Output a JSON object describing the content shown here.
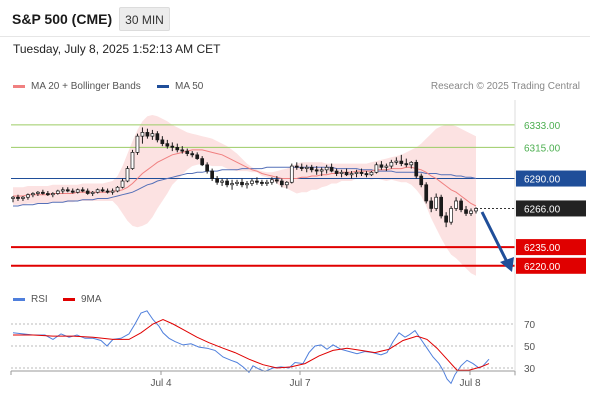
{
  "header": {
    "title": "S&P 500 (CME)",
    "timeframe": "30 MIN",
    "timestamp": "Tuesday, July 8, 2025 1:52:13 AM CET"
  },
  "legend": {
    "ma20": "MA 20 + Bollinger Bands",
    "ma50": "MA 50",
    "credit": "Research © 2025 Trading Central",
    "rsi": "RSI",
    "rsi_ma": "9MA"
  },
  "colors": {
    "ma20": "#f08080",
    "band_fill": "#fbd5d5",
    "ma50": "#5570b8",
    "candle": "#1a1a1a",
    "resistance": "#9ccc65",
    "pivot": "#1f4e99",
    "support": "#e00000",
    "rsi": "#4f7fdc",
    "rsi_ma": "#e00000",
    "arrow": "#1f4e99"
  },
  "levels": [
    {
      "value": 6333.0,
      "label": "6333.00",
      "type": "resistance"
    },
    {
      "value": 6315.0,
      "label": "6315.00",
      "type": "resistance"
    },
    {
      "value": 6290.0,
      "label": "6290.00",
      "type": "pivot"
    },
    {
      "value": 6266.0,
      "label": "6266.00",
      "type": "current"
    },
    {
      "value": 6235.0,
      "label": "6235.00",
      "type": "support"
    },
    {
      "value": 6220.0,
      "label": "6220.00",
      "type": "support"
    }
  ],
  "x_labels": [
    "Jul 4",
    "Jul 7",
    "Jul 8"
  ],
  "rsi_ticks": [
    "70",
    "50",
    "30"
  ],
  "chart_data": {
    "type": "candlestick",
    "ylim": [
      6207,
      6353
    ],
    "candles": [
      [
        6274,
        6276,
        6271,
        6275
      ],
      [
        6275,
        6277,
        6272,
        6274
      ],
      [
        6274,
        6276,
        6272,
        6275
      ],
      [
        6275,
        6278,
        6273,
        6277
      ],
      [
        6277,
        6279,
        6275,
        6278
      ],
      [
        6278,
        6280,
        6276,
        6279
      ],
      [
        6279,
        6281,
        6277,
        6278
      ],
      [
        6278,
        6280,
        6276,
        6277
      ],
      [
        6277,
        6279,
        6275,
        6278
      ],
      [
        6278,
        6281,
        6277,
        6280
      ],
      [
        6280,
        6283,
        6278,
        6281
      ],
      [
        6281,
        6283,
        6279,
        6280
      ],
      [
        6280,
        6282,
        6278,
        6279
      ],
      [
        6279,
        6282,
        6278,
        6281
      ],
      [
        6281,
        6283,
        6279,
        6280
      ],
      [
        6280,
        6282,
        6277,
        6278
      ],
      [
        6278,
        6280,
        6276,
        6279
      ],
      [
        6279,
        6282,
        6278,
        6281
      ],
      [
        6281,
        6283,
        6279,
        6280
      ],
      [
        6280,
        6282,
        6278,
        6279
      ],
      [
        6279,
        6282,
        6277,
        6280
      ],
      [
        6280,
        6284,
        6279,
        6283
      ],
      [
        6283,
        6290,
        6282,
        6288
      ],
      [
        6288,
        6300,
        6287,
        6298
      ],
      [
        6298,
        6313,
        6297,
        6311
      ],
      [
        6311,
        6326,
        6309,
        6324
      ],
      [
        6324,
        6331,
        6318,
        6327
      ],
      [
        6327,
        6330,
        6322,
        6324
      ],
      [
        6324,
        6329,
        6321,
        6326
      ],
      [
        6326,
        6328,
        6319,
        6321
      ],
      [
        6321,
        6324,
        6316,
        6318
      ],
      [
        6318,
        6321,
        6314,
        6316
      ],
      [
        6316,
        6319,
        6312,
        6315
      ],
      [
        6315,
        6318,
        6311,
        6313
      ],
      [
        6313,
        6316,
        6310,
        6312
      ],
      [
        6312,
        6314,
        6308,
        6310
      ],
      [
        6310,
        6312,
        6307,
        6309
      ],
      [
        6309,
        6311,
        6305,
        6306
      ],
      [
        6306,
        6308,
        6300,
        6301
      ],
      [
        6301,
        6303,
        6294,
        6296
      ],
      [
        6296,
        6298,
        6288,
        6290
      ],
      [
        6290,
        6292,
        6285,
        6287
      ],
      [
        6287,
        6290,
        6284,
        6288
      ],
      [
        6288,
        6290,
        6283,
        6285
      ],
      [
        6285,
        6289,
        6281,
        6286
      ],
      [
        6286,
        6289,
        6284,
        6287
      ],
      [
        6287,
        6290,
        6283,
        6285
      ],
      [
        6285,
        6288,
        6282,
        6286
      ],
      [
        6286,
        6290,
        6284,
        6288
      ],
      [
        6288,
        6291,
        6285,
        6287
      ],
      [
        6287,
        6289,
        6284,
        6286
      ],
      [
        6286,
        6289,
        6284,
        6287
      ],
      [
        6287,
        6291,
        6285,
        6289
      ],
      [
        6289,
        6292,
        6286,
        6288
      ],
      [
        6288,
        6290,
        6283,
        6285
      ],
      [
        6285,
        6288,
        6282,
        6287
      ],
      [
        6287,
        6302,
        6286,
        6300
      ],
      [
        6300,
        6303,
        6297,
        6299
      ],
      [
        6299,
        6302,
        6296,
        6298
      ],
      [
        6298,
        6301,
        6295,
        6299
      ],
      [
        6299,
        6301,
        6295,
        6297
      ],
      [
        6297,
        6300,
        6293,
        6296
      ],
      [
        6296,
        6299,
        6292,
        6297
      ],
      [
        6297,
        6301,
        6294,
        6299
      ],
      [
        6299,
        6302,
        6295,
        6296
      ],
      [
        6296,
        6298,
        6292,
        6294
      ],
      [
        6294,
        6297,
        6291,
        6295
      ],
      [
        6295,
        6298,
        6292,
        6293
      ],
      [
        6293,
        6296,
        6290,
        6294
      ],
      [
        6294,
        6297,
        6291,
        6295
      ],
      [
        6295,
        6298,
        6292,
        6294
      ],
      [
        6294,
        6296,
        6291,
        6293
      ],
      [
        6293,
        6296,
        6292,
        6295
      ],
      [
        6295,
        6303,
        6294,
        6301
      ],
      [
        6301,
        6304,
        6297,
        6299
      ],
      [
        6299,
        6302,
        6296,
        6300
      ],
      [
        6300,
        6305,
        6298,
        6303
      ],
      [
        6303,
        6307,
        6301,
        6304
      ],
      [
        6304,
        6309,
        6300,
        6302
      ],
      [
        6302,
        6306,
        6299,
        6301
      ],
      [
        6301,
        6304,
        6298,
        6303
      ],
      [
        6303,
        6305,
        6290,
        6292
      ],
      [
        6292,
        6294,
        6283,
        6285
      ],
      [
        6285,
        6287,
        6270,
        6272
      ],
      [
        6272,
        6275,
        6263,
        6266
      ],
      [
        6266,
        6278,
        6264,
        6275
      ],
      [
        6275,
        6277,
        6258,
        6260
      ],
      [
        6260,
        6263,
        6251,
        6255
      ],
      [
        6255,
        6268,
        6253,
        6266
      ],
      [
        6266,
        6275,
        6264,
        6272
      ],
      [
        6272,
        6274,
        6263,
        6265
      ],
      [
        6265,
        6268,
        6260,
        6262
      ],
      [
        6262,
        6266,
        6260,
        6264
      ],
      [
        6264,
        6267,
        6262,
        6266
      ]
    ],
    "ma20": [
      6276,
      6276,
      6276,
      6277,
      6277,
      6277,
      6277,
      6277,
      6278,
      6278,
      6278,
      6278,
      6278,
      6279,
      6279,
      6279,
      6279,
      6279,
      6279,
      6279,
      6280,
      6280,
      6281,
      6283,
      6286,
      6290,
      6294,
      6297,
      6300,
      6303,
      6305,
      6307,
      6309,
      6310,
      6311,
      6312,
      6313,
      6313,
      6313,
      6312,
      6311,
      6310,
      6309,
      6307,
      6305,
      6303,
      6301,
      6299,
      6297,
      6296,
      6294,
      6293,
      6292,
      6291,
      6290,
      6290,
      6290,
      6290,
      6291,
      6291,
      6292,
      6292,
      6293,
      6293,
      6294,
      6294,
      6295,
      6295,
      6295,
      6296,
      6296,
      6296,
      6296,
      6297,
      6297,
      6297,
      6298,
      6298,
      6298,
      6299,
      6299,
      6298,
      6297,
      6295,
      6292,
      6290,
      6287,
      6284,
      6281,
      6279,
      6276,
      6273,
      6270,
      6268
    ],
    "bb_upper": [
      6283,
      6283,
      6283,
      6284,
      6284,
      6284,
      6284,
      6284,
      6285,
      6285,
      6285,
      6285,
      6285,
      6285,
      6286,
      6286,
      6286,
      6286,
      6286,
      6287,
      6288,
      6292,
      6300,
      6310,
      6320,
      6329,
      6336,
      6340,
      6341,
      6340,
      6338,
      6336,
      6333,
      6331,
      6329,
      6327,
      6326,
      6325,
      6324,
      6323,
      6322,
      6320,
      6318,
      6316,
      6313,
      6310,
      6306,
      6302,
      6299,
      6297,
      6296,
      6295,
      6295,
      6296,
      6297,
      6298,
      6300,
      6302,
      6303,
      6303,
      6303,
      6303,
      6303,
      6302,
      6302,
      6302,
      6302,
      6302,
      6302,
      6302,
      6302,
      6302,
      6303,
      6304,
      6305,
      6306,
      6307,
      6308,
      6309,
      6311,
      6313,
      6315,
      6318,
      6322,
      6326,
      6330,
      6332,
      6333,
      6333,
      6332,
      6330,
      6328,
      6326,
      6324
    ],
    "bb_lower": [
      6269,
      6269,
      6269,
      6270,
      6270,
      6270,
      6270,
      6270,
      6271,
      6271,
      6271,
      6271,
      6271,
      6272,
      6272,
      6272,
      6272,
      6272,
      6272,
      6272,
      6272,
      6268,
      6262,
      6256,
      6252,
      6251,
      6252,
      6254,
      6259,
      6266,
      6272,
      6278,
      6285,
      6289,
      6293,
      6297,
      6300,
      6301,
      6302,
      6301,
      6300,
      6300,
      6300,
      6298,
      6297,
      6296,
      6296,
      6296,
      6295,
      6295,
      6292,
      6291,
      6289,
      6286,
      6283,
      6282,
      6280,
      6278,
      6279,
      6279,
      6281,
      6281,
      6283,
      6284,
      6286,
      6286,
      6288,
      6288,
      6288,
      6290,
      6290,
      6290,
      6289,
      6290,
      6289,
      6288,
      6289,
      6288,
      6287,
      6287,
      6285,
      6281,
      6276,
      6268,
      6258,
      6250,
      6242,
      6235,
      6229,
      6226,
      6222,
      6218,
      6214,
      6212
    ],
    "ma50": [
      6268,
      6268,
      6269,
      6269,
      6269,
      6270,
      6270,
      6270,
      6271,
      6271,
      6271,
      6272,
      6272,
      6272,
      6273,
      6273,
      6273,
      6274,
      6274,
      6274,
      6275,
      6276,
      6277,
      6278,
      6279,
      6281,
      6283,
      6285,
      6286,
      6288,
      6289,
      6290,
      6291,
      6292,
      6293,
      6294,
      6294,
      6295,
      6295,
      6296,
      6296,
      6296,
      6297,
      6297,
      6297,
      6297,
      6298,
      6298,
      6298,
      6298,
      6298,
      6299,
      6299,
      6299,
      6299,
      6299,
      6299,
      6299,
      6299,
      6299,
      6299,
      6299,
      6299,
      6299,
      6299,
      6298,
      6298,
      6298,
      6298,
      6298,
      6297,
      6297,
      6297,
      6296,
      6296,
      6296,
      6296,
      6295,
      6295,
      6295,
      6295,
      6295,
      6295,
      6294,
      6294,
      6294,
      6293,
      6293,
      6293,
      6292,
      6292,
      6291,
      6291,
      6290
    ],
    "rsi": [
      [
        0,
        62
      ],
      [
        10,
        61
      ],
      [
        20,
        60
      ],
      [
        32,
        60
      ],
      [
        40,
        56
      ],
      [
        48,
        61
      ],
      [
        56,
        58
      ],
      [
        64,
        60
      ],
      [
        72,
        57
      ],
      [
        80,
        57
      ],
      [
        88,
        55
      ],
      [
        94,
        50
      ],
      [
        100,
        56
      ],
      [
        108,
        57
      ],
      [
        116,
        61
      ],
      [
        122,
        70
      ],
      [
        128,
        80
      ],
      [
        134,
        82
      ],
      [
        140,
        74
      ],
      [
        146,
        68
      ],
      [
        150,
        62
      ],
      [
        156,
        57
      ],
      [
        162,
        54
      ],
      [
        170,
        51
      ],
      [
        178,
        52
      ],
      [
        186,
        49
      ],
      [
        194,
        48
      ],
      [
        202,
        46
      ],
      [
        210,
        40
      ],
      [
        218,
        37
      ],
      [
        224,
        35
      ],
      [
        230,
        31
      ],
      [
        236,
        26
      ],
      [
        240,
        32
      ],
      [
        246,
        29
      ],
      [
        252,
        27
      ],
      [
        260,
        30
      ],
      [
        268,
        31
      ],
      [
        276,
        30
      ],
      [
        282,
        35
      ],
      [
        290,
        34
      ],
      [
        296,
        44
      ],
      [
        302,
        50
      ],
      [
        308,
        51
      ],
      [
        314,
        47
      ],
      [
        320,
        51
      ],
      [
        328,
        47
      ],
      [
        336,
        45
      ],
      [
        344,
        43
      ],
      [
        352,
        45
      ],
      [
        360,
        44
      ],
      [
        368,
        42
      ],
      [
        374,
        44
      ],
      [
        380,
        54
      ],
      [
        386,
        62
      ],
      [
        392,
        58
      ],
      [
        396,
        60
      ],
      [
        402,
        64
      ],
      [
        408,
        56
      ],
      [
        414,
        48
      ],
      [
        420,
        40
      ],
      [
        426,
        34
      ],
      [
        430,
        28
      ],
      [
        434,
        20
      ],
      [
        438,
        16
      ],
      [
        442,
        24
      ],
      [
        448,
        32
      ],
      [
        454,
        37
      ],
      [
        460,
        34
      ],
      [
        466,
        30
      ],
      [
        470,
        32
      ],
      [
        476,
        38
      ]
    ],
    "rsi_ma": [
      [
        0,
        60
      ],
      [
        20,
        60
      ],
      [
        40,
        59
      ],
      [
        60,
        59
      ],
      [
        80,
        58
      ],
      [
        100,
        56
      ],
      [
        116,
        56
      ],
      [
        128,
        62
      ],
      [
        140,
        70
      ],
      [
        150,
        74
      ],
      [
        160,
        70
      ],
      [
        172,
        64
      ],
      [
        184,
        58
      ],
      [
        196,
        53
      ],
      [
        210,
        48
      ],
      [
        222,
        44
      ],
      [
        236,
        38
      ],
      [
        250,
        33
      ],
      [
        264,
        30
      ],
      [
        278,
        31
      ],
      [
        292,
        34
      ],
      [
        306,
        41
      ],
      [
        320,
        46
      ],
      [
        334,
        48
      ],
      [
        348,
        46
      ],
      [
        362,
        44
      ],
      [
        376,
        47
      ],
      [
        390,
        55
      ],
      [
        404,
        59
      ],
      [
        414,
        56
      ],
      [
        424,
        48
      ],
      [
        434,
        38
      ],
      [
        444,
        28
      ],
      [
        456,
        28
      ],
      [
        468,
        31
      ],
      [
        476,
        34
      ]
    ]
  }
}
